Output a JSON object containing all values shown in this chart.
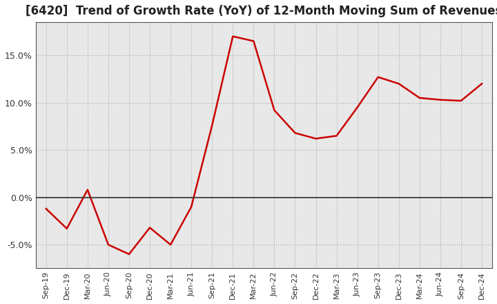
{
  "title": "[6420]  Trend of Growth Rate (YoY) of 12-Month Moving Sum of Revenues",
  "title_fontsize": 12,
  "line_color": "#cc0000",
  "background_color": "#ffffff",
  "plot_bg_color": "#e8e8e8",
  "grid_color": "#aaaaaa",
  "ylim": [
    -0.075,
    0.185
  ],
  "yticks": [
    -0.05,
    0.0,
    0.05,
    0.1,
    0.15
  ],
  "dates": [
    "Sep-19",
    "Dec-19",
    "Mar-20",
    "Jun-20",
    "Sep-20",
    "Dec-20",
    "Mar-21",
    "Jun-21",
    "Sep-21",
    "Dec-21",
    "Mar-22",
    "Jun-22",
    "Sep-22",
    "Dec-22",
    "Mar-23",
    "Jun-23",
    "Sep-23",
    "Dec-23",
    "Mar-24",
    "Jun-24",
    "Sep-24",
    "Dec-24"
  ],
  "values": [
    -0.012,
    -0.033,
    0.008,
    -0.05,
    -0.06,
    -0.032,
    -0.05,
    -0.01,
    0.076,
    0.17,
    0.165,
    0.092,
    0.068,
    0.062,
    0.065,
    0.095,
    0.127,
    0.12,
    0.105,
    0.103,
    0.102,
    0.12
  ]
}
